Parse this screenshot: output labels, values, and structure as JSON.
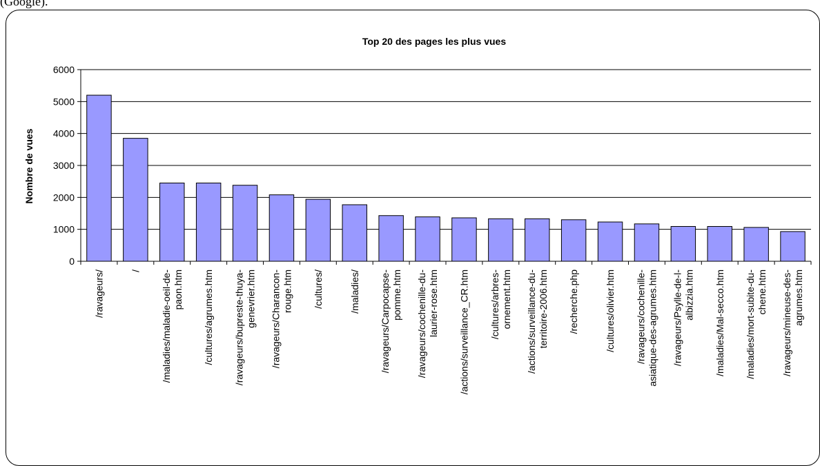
{
  "top_text": "(Google).",
  "chart_data": {
    "type": "bar",
    "title": "Top 20 des pages les plus vues",
    "xlabel": "",
    "ylabel": "Nombre de vues",
    "ylim": [
      0,
      6000
    ],
    "yticks": [
      0,
      1000,
      2000,
      3000,
      4000,
      5000,
      6000
    ],
    "grid": true,
    "bar_color": "#9999ff",
    "categories": [
      [
        "/ravageurs/"
      ],
      [
        "/"
      ],
      [
        "/maladies/maladie-oeil-de-",
        "paon.htm"
      ],
      [
        "/cultures/agrumes.htm"
      ],
      [
        "/ravageurs/bupreste-thuya-",
        "genevrier.htm"
      ],
      [
        "/ravageurs/Charancon-",
        "rouge.htm"
      ],
      [
        "/cultures/"
      ],
      [
        "/maladies/"
      ],
      [
        "/ravageurs/Carpocapse-",
        "pomme.htm"
      ],
      [
        "/ravageurs/cochenille-du-",
        "laurier-rose.htm"
      ],
      [
        "/actions/surveillance_CR.htm"
      ],
      [
        "/cultures/arbres-",
        "ornement.htm"
      ],
      [
        "/actions/surveillance-du-",
        "territoire-2006.htm"
      ],
      [
        "/recherche.php"
      ],
      [
        "/cultures/olivier.htm"
      ],
      [
        "/ravageurs/cochenille-",
        "asiatique-des-agrumes.htm"
      ],
      [
        "/ravageurs/Psylle-de-l-",
        "albizzia.htm"
      ],
      [
        "/maladies/Mal-secco.htm"
      ],
      [
        "/maladies/mort-subite-du-",
        "chene.htm"
      ],
      [
        "/ravageurs/mineuse-des-",
        "agrumes.htm"
      ]
    ],
    "values": [
      5200,
      3850,
      2450,
      2450,
      2380,
      2080,
      1940,
      1770,
      1430,
      1390,
      1360,
      1330,
      1330,
      1300,
      1230,
      1170,
      1090,
      1090,
      1060,
      930
    ]
  }
}
